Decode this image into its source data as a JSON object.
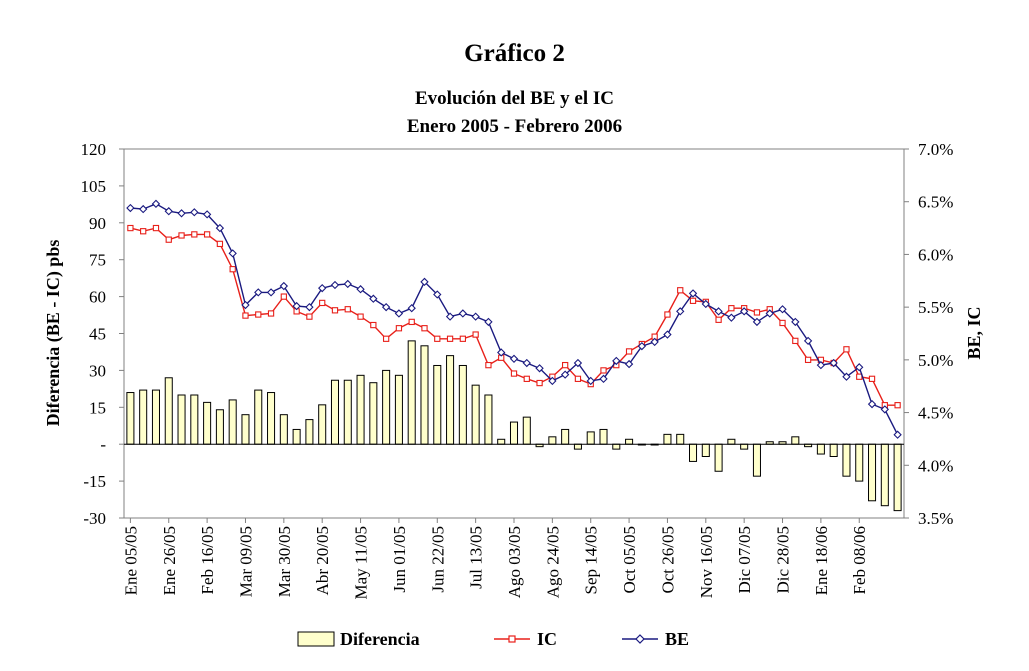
{
  "title": "Gráfico 2",
  "subtitle_line1": "Evolución del BE y el IC",
  "subtitle_line2": "Enero 2005 - Febrero 2006",
  "chart_data": {
    "type": "bar+line",
    "ylabel_left": "Diferencia (BE - IC) pbs",
    "ylabel_right": "BE, IC",
    "ylim_left": [
      -30,
      120
    ],
    "ylim_right": [
      3.5,
      7.0
    ],
    "left_ticks": [
      "120",
      "105",
      "90",
      "75",
      "60",
      "45",
      "30",
      "15",
      "-",
      "-15",
      "-30"
    ],
    "right_ticks": [
      "7.0%",
      "6.5%",
      "6.0%",
      "5.5%",
      "5.0%",
      "4.5%",
      "4.0%",
      "3.5%"
    ],
    "x_tick_labels": [
      "Ene 05/05",
      "Ene 26/05",
      "Feb 16/05",
      "Mar 09/05",
      "Mar 30/05",
      "Abr 20/05",
      "May 11/05",
      "Jun 01/05",
      "Jun 22/05",
      "Jul 13/05",
      "Ago 03/05",
      "Ago 24/05",
      "Sep 14/05",
      "Oct 05/05",
      "Oct 26/05",
      "Nov 16/05",
      "Dic 07/05",
      "Dic 28/05",
      "Ene 18/06",
      "Feb 08/06"
    ],
    "legend": [
      "Diferencia",
      "IC",
      "BE"
    ],
    "series": [
      {
        "name": "Diferencia",
        "type": "bar",
        "axis": "left",
        "color": "#FFFFCC",
        "values": [
          21,
          22,
          22,
          27,
          20,
          20,
          17,
          14,
          18,
          12,
          22,
          21,
          12,
          6,
          10,
          16,
          26,
          26,
          28,
          25,
          30,
          28,
          42,
          40,
          32,
          36,
          32,
          24,
          20,
          2,
          9,
          11,
          -1,
          3,
          6,
          -2,
          5,
          6,
          -2,
          2,
          0,
          0,
          4,
          4,
          -7,
          -5,
          -11,
          2,
          -2,
          -13,
          1,
          1,
          3,
          -1,
          -4,
          -5,
          -13,
          -15,
          -23,
          -25,
          -27
        ]
      },
      {
        "name": "IC",
        "type": "line",
        "axis": "right",
        "color": "#E8201A",
        "values": [
          6.25,
          6.22,
          6.25,
          6.14,
          6.18,
          6.19,
          6.19,
          6.1,
          5.86,
          5.42,
          5.43,
          5.44,
          5.6,
          5.46,
          5.41,
          5.54,
          5.47,
          5.48,
          5.41,
          5.33,
          5.2,
          5.3,
          5.36,
          5.3,
          5.2,
          5.2,
          5.2,
          5.24,
          4.95,
          5.02,
          4.87,
          4.82,
          4.78,
          4.84,
          4.95,
          4.82,
          4.77,
          4.9,
          4.95,
          5.08,
          5.15,
          5.22,
          5.43,
          5.66,
          5.56,
          5.55,
          5.38,
          5.49,
          5.49,
          5.45,
          5.48,
          5.35,
          5.18,
          5.0,
          5.0,
          4.97,
          5.1,
          4.84,
          4.82,
          4.57,
          4.57
        ]
      },
      {
        "name": "BE",
        "type": "line",
        "axis": "right",
        "color": "#1A1A80",
        "values": [
          6.44,
          6.43,
          6.48,
          6.41,
          6.39,
          6.4,
          6.38,
          6.25,
          6.01,
          5.52,
          5.64,
          5.64,
          5.7,
          5.51,
          5.5,
          5.68,
          5.71,
          5.72,
          5.67,
          5.58,
          5.5,
          5.44,
          5.49,
          5.74,
          5.62,
          5.41,
          5.44,
          5.41,
          5.36,
          5.07,
          5.01,
          4.97,
          4.92,
          4.8,
          4.86,
          4.97,
          4.8,
          4.82,
          4.99,
          4.96,
          5.13,
          5.17,
          5.24,
          5.46,
          5.63,
          5.53,
          5.46,
          5.4,
          5.46,
          5.36,
          5.44,
          5.48,
          5.36,
          5.18,
          4.95,
          4.97,
          4.84,
          4.93,
          4.58,
          4.53,
          4.29
        ]
      }
    ]
  }
}
